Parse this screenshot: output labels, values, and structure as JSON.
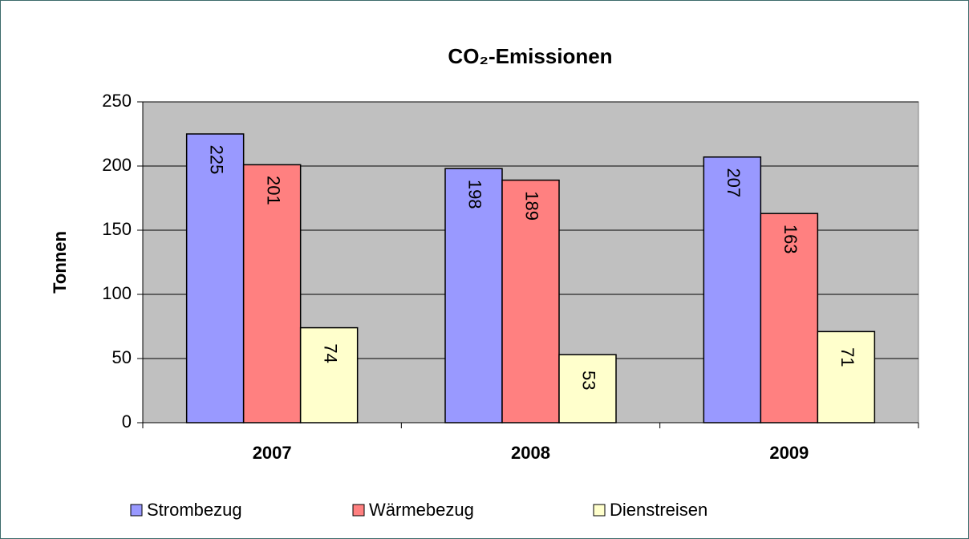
{
  "chart_data": {
    "type": "bar",
    "title": "CO₂-Emissionen",
    "y_label": "Tonnen",
    "categories": [
      "2007",
      "2008",
      "2009"
    ],
    "series": [
      {
        "name": "Strombezug",
        "color": "#9999ff",
        "values": [
          225,
          198,
          207
        ]
      },
      {
        "name": "Wärmebezug",
        "color": "#ff8080",
        "values": [
          201,
          189,
          163
        ]
      },
      {
        "name": "Dienstreisen",
        "color": "#ffffcc",
        "values": [
          74,
          53,
          71
        ]
      }
    ],
    "ylim": [
      0,
      250
    ],
    "yticks": [
      0,
      50,
      100,
      150,
      200,
      250
    ],
    "grid": true,
    "plot_background": "#c0c0c0",
    "legend": "bottom"
  }
}
